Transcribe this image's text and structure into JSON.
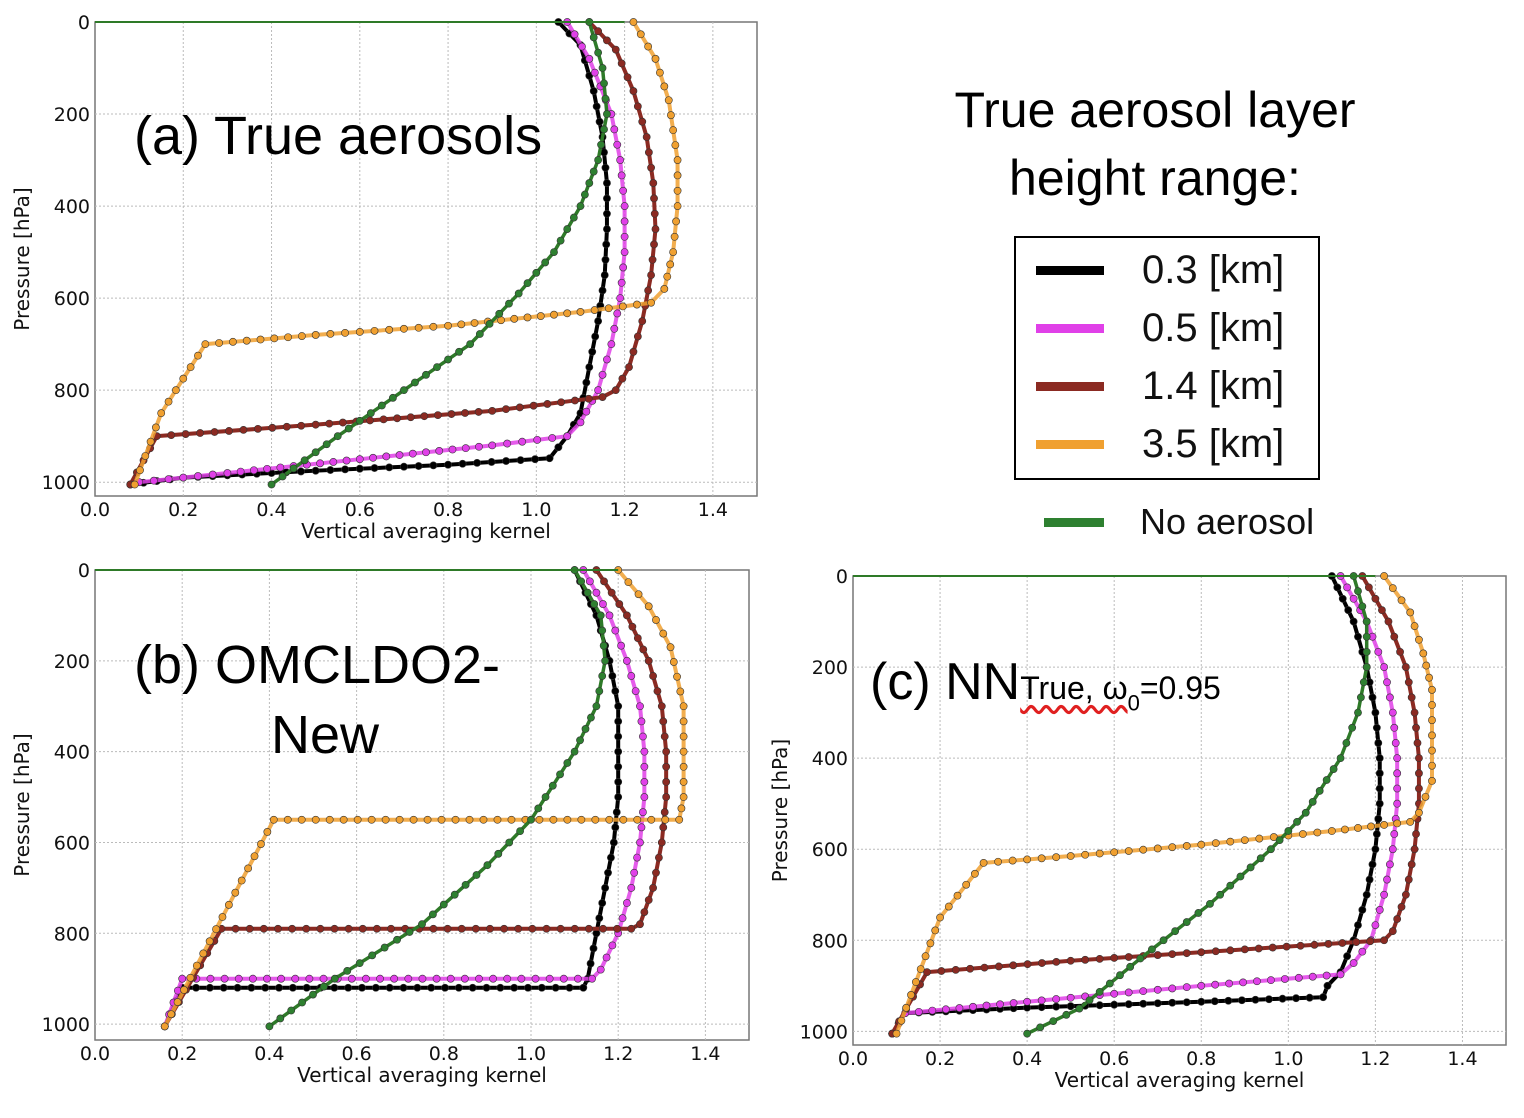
{
  "legend": {
    "title_line1": "True aerosol layer",
    "title_line2": "height range:",
    "entries": [
      {
        "label": "0.3 [km]",
        "color": "#000000"
      },
      {
        "label": "0.5 [km]",
        "color": "#e040e8"
      },
      {
        "label": "1.4 [km]",
        "color": "#8b2a22"
      },
      {
        "label": "3.5 [km]",
        "color": "#f0a030"
      }
    ],
    "no_aerosol": {
      "label": "No aerosol",
      "color": "#2e8030"
    }
  },
  "annotations": {
    "a": "(a) True aerosols",
    "b_line1": "(b) OMCLDO2-",
    "b_line2": "New",
    "c_main": "(c) NN",
    "c_sub": "True, ω",
    "c_subscript": "0",
    "c_tail": "=0.95"
  },
  "chart_data": [
    {
      "type": "line",
      "panel": "a",
      "title": "(a) True aerosols",
      "xlabel": "Vertical averaging kernel",
      "ylabel": "Pressure [hPa]",
      "xlim": [
        0,
        1.5
      ],
      "ylim": [
        1030,
        0
      ],
      "grid": true,
      "xticks": [
        "0.0",
        "0.2",
        "0.4",
        "0.6",
        "0.8",
        "1.0",
        "1.2",
        "1.4"
      ],
      "yticks": [
        "0",
        "200",
        "400",
        "600",
        "800",
        "1000"
      ],
      "series": [
        {
          "name": "0.3 [km]",
          "points": [
            [
              1.05,
              0
            ],
            [
              1.1,
              50
            ],
            [
              1.13,
              150
            ],
            [
              1.15,
              250
            ],
            [
              1.16,
              350
            ],
            [
              1.16,
              450
            ],
            [
              1.155,
              550
            ],
            [
              1.14,
              650
            ],
            [
              1.12,
              750
            ],
            [
              1.1,
              850
            ],
            [
              1.07,
              900
            ],
            [
              1.03,
              948
            ],
            [
              0.8,
              962
            ],
            [
              0.5,
              975
            ],
            [
              0.2,
              990
            ],
            [
              0.08,
              1005
            ]
          ]
        },
        {
          "name": "0.5 [km]",
          "points": [
            [
              1.07,
              0
            ],
            [
              1.12,
              80
            ],
            [
              1.17,
              200
            ],
            [
              1.19,
              300
            ],
            [
              1.2,
              400
            ],
            [
              1.2,
              500
            ],
            [
              1.19,
              600
            ],
            [
              1.17,
              700
            ],
            [
              1.14,
              800
            ],
            [
              1.1,
              870
            ],
            [
              1.07,
              900
            ],
            [
              0.9,
              920
            ],
            [
              0.6,
              950
            ],
            [
              0.3,
              980
            ],
            [
              0.1,
              1000
            ],
            [
              0.08,
              1005
            ]
          ]
        },
        {
          "name": "1.4 [km]",
          "points": [
            [
              1.12,
              0
            ],
            [
              1.18,
              60
            ],
            [
              1.22,
              150
            ],
            [
              1.25,
              250
            ],
            [
              1.265,
              350
            ],
            [
              1.27,
              450
            ],
            [
              1.26,
              550
            ],
            [
              1.24,
              650
            ],
            [
              1.21,
              750
            ],
            [
              1.18,
              800
            ],
            [
              1.15,
              815
            ],
            [
              0.9,
              845
            ],
            [
              0.5,
              875
            ],
            [
              0.14,
              900
            ],
            [
              0.08,
              1005
            ]
          ]
        },
        {
          "name": "3.5 [km]",
          "points": [
            [
              1.22,
              0
            ],
            [
              1.27,
              80
            ],
            [
              1.3,
              170
            ],
            [
              1.32,
              300
            ],
            [
              1.32,
              400
            ],
            [
              1.31,
              500
            ],
            [
              1.29,
              580
            ],
            [
              1.26,
              610
            ],
            [
              1.1,
              630
            ],
            [
              0.8,
              660
            ],
            [
              0.5,
              680
            ],
            [
              0.25,
              700
            ],
            [
              0.15,
              850
            ],
            [
              0.09,
              1005
            ]
          ]
        },
        {
          "name": "No aerosol",
          "points": [
            [
              1.12,
              0
            ],
            [
              1.15,
              100
            ],
            [
              1.16,
              200
            ],
            [
              1.14,
              300
            ],
            [
              1.1,
              400
            ],
            [
              1.04,
              500
            ],
            [
              0.96,
              590
            ],
            [
              0.85,
              700
            ],
            [
              0.7,
              800
            ],
            [
              0.55,
              900
            ],
            [
              0.4,
              1005
            ]
          ]
        }
      ]
    },
    {
      "type": "line",
      "panel": "b",
      "title": "(b) OMCLDO2-New",
      "xlabel": "Vertical averaging kernel",
      "ylabel": "Pressure [hPa]",
      "xlim": [
        0,
        1.5
      ],
      "ylim": [
        1035,
        0
      ],
      "grid": true,
      "xticks": [
        "0.0",
        "0.2",
        "0.4",
        "0.6",
        "0.8",
        "1.0",
        "1.2",
        "1.4"
      ],
      "yticks": [
        "0",
        "200",
        "400",
        "600",
        "800",
        "1000"
      ],
      "series": [
        {
          "name": "0.3 [km]",
          "points": [
            [
              1.1,
              0
            ],
            [
              1.15,
              100
            ],
            [
              1.18,
              200
            ],
            [
              1.2,
              300
            ],
            [
              1.2,
              400
            ],
            [
              1.2,
              500
            ],
            [
              1.19,
              600
            ],
            [
              1.17,
              700
            ],
            [
              1.15,
              800
            ],
            [
              1.13,
              900
            ],
            [
              1.12,
              920
            ],
            [
              0.2,
              920
            ],
            [
              0.16,
              1005
            ]
          ]
        },
        {
          "name": "0.5 [km]",
          "points": [
            [
              1.12,
              0
            ],
            [
              1.18,
              100
            ],
            [
              1.22,
              200
            ],
            [
              1.25,
              300
            ],
            [
              1.26,
              400
            ],
            [
              1.26,
              500
            ],
            [
              1.25,
              600
            ],
            [
              1.23,
              700
            ],
            [
              1.2,
              800
            ],
            [
              1.16,
              880
            ],
            [
              1.14,
              900
            ],
            [
              0.2,
              900
            ],
            [
              0.16,
              1005
            ]
          ]
        },
        {
          "name": "1.4 [km]",
          "points": [
            [
              1.15,
              0
            ],
            [
              1.22,
              100
            ],
            [
              1.27,
              200
            ],
            [
              1.3,
              300
            ],
            [
              1.31,
              400
            ],
            [
              1.31,
              500
            ],
            [
              1.3,
              600
            ],
            [
              1.28,
              700
            ],
            [
              1.25,
              780
            ],
            [
              1.23,
              790
            ],
            [
              0.29,
              790
            ],
            [
              0.16,
              1005
            ]
          ]
        },
        {
          "name": "3.5 [km]",
          "points": [
            [
              1.2,
              0
            ],
            [
              1.27,
              80
            ],
            [
              1.32,
              170
            ],
            [
              1.35,
              300
            ],
            [
              1.35,
              400
            ],
            [
              1.35,
              500
            ],
            [
              1.34,
              550
            ],
            [
              0.41,
              550
            ],
            [
              0.16,
              1005
            ]
          ]
        },
        {
          "name": "No aerosol",
          "points": [
            [
              1.1,
              0
            ],
            [
              1.16,
              100
            ],
            [
              1.17,
              200
            ],
            [
              1.15,
              300
            ],
            [
              1.1,
              400
            ],
            [
              1.0,
              550
            ],
            [
              0.9,
              650
            ],
            [
              0.75,
              780
            ],
            [
              0.55,
              900
            ],
            [
              0.4,
              1005
            ]
          ]
        }
      ]
    },
    {
      "type": "line",
      "panel": "c",
      "title": "(c) NN True, ω0=0.95",
      "xlabel": "Vertical averaging kernel",
      "ylabel": "Pressure [hPa]",
      "xlim": [
        0,
        1.5
      ],
      "ylim": [
        1030,
        0
      ],
      "grid": true,
      "xticks": [
        "0.0",
        "0.2",
        "0.4",
        "0.6",
        "0.8",
        "1.0",
        "1.2",
        "1.4"
      ],
      "yticks": [
        "0",
        "200",
        "400",
        "600",
        "800",
        "1000"
      ],
      "series": [
        {
          "name": "0.3 [km]",
          "points": [
            [
              1.1,
              0
            ],
            [
              1.15,
              100
            ],
            [
              1.18,
              200
            ],
            [
              1.2,
              300
            ],
            [
              1.21,
              400
            ],
            [
              1.21,
              500
            ],
            [
              1.2,
              600
            ],
            [
              1.18,
              700
            ],
            [
              1.15,
              800
            ],
            [
              1.12,
              870
            ],
            [
              1.09,
              900
            ],
            [
              1.08,
              925
            ],
            [
              0.8,
              935
            ],
            [
              0.4,
              948
            ],
            [
              0.12,
              960
            ],
            [
              0.09,
              1005
            ]
          ]
        },
        {
          "name": "0.5 [km]",
          "points": [
            [
              1.12,
              0
            ],
            [
              1.18,
              100
            ],
            [
              1.22,
              200
            ],
            [
              1.24,
              300
            ],
            [
              1.25,
              400
            ],
            [
              1.25,
              500
            ],
            [
              1.24,
              600
            ],
            [
              1.22,
              700
            ],
            [
              1.19,
              800
            ],
            [
              1.15,
              850
            ],
            [
              1.12,
              875
            ],
            [
              0.8,
              900
            ],
            [
              0.4,
              935
            ],
            [
              0.12,
              960
            ],
            [
              0.09,
              1005
            ]
          ]
        },
        {
          "name": "1.4 [km]",
          "points": [
            [
              1.17,
              0
            ],
            [
              1.23,
              100
            ],
            [
              1.27,
              200
            ],
            [
              1.29,
              300
            ],
            [
              1.3,
              400
            ],
            [
              1.3,
              500
            ],
            [
              1.29,
              600
            ],
            [
              1.27,
              700
            ],
            [
              1.24,
              780
            ],
            [
              1.22,
              800
            ],
            [
              0.9,
              820
            ],
            [
              0.5,
              845
            ],
            [
              0.17,
              870
            ],
            [
              0.09,
              1005
            ]
          ]
        },
        {
          "name": "3.5 [km]",
          "points": [
            [
              1.22,
              0
            ],
            [
              1.28,
              80
            ],
            [
              1.31,
              170
            ],
            [
              1.33,
              250
            ],
            [
              1.33,
              350
            ],
            [
              1.33,
              450
            ],
            [
              1.3,
              520
            ],
            [
              1.28,
              540
            ],
            [
              1.1,
              560
            ],
            [
              0.8,
              590
            ],
            [
              0.5,
              615
            ],
            [
              0.3,
              630
            ],
            [
              0.2,
              750
            ],
            [
              0.1,
              1005
            ]
          ]
        },
        {
          "name": "No aerosol",
          "points": [
            [
              1.15,
              0
            ],
            [
              1.18,
              100
            ],
            [
              1.18,
              200
            ],
            [
              1.16,
              300
            ],
            [
              1.12,
              400
            ],
            [
              1.04,
              520
            ],
            [
              0.96,
              600
            ],
            [
              0.82,
              720
            ],
            [
              0.66,
              840
            ],
            [
              0.52,
              950
            ],
            [
              0.4,
              1005
            ]
          ]
        }
      ]
    }
  ]
}
